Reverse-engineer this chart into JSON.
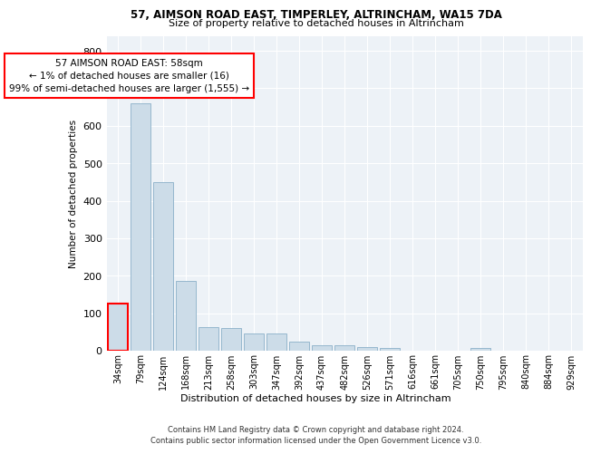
{
  "title1": "57, AIMSON ROAD EAST, TIMPERLEY, ALTRINCHAM, WA15 7DA",
  "title2": "Size of property relative to detached houses in Altrincham",
  "xlabel": "Distribution of detached houses by size in Altrincham",
  "ylabel": "Number of detached properties",
  "bar_color": "#ccdce8",
  "bar_edge_color": "#8ab0c8",
  "highlight_edge_color": "red",
  "annotation_line1": "57 AIMSON ROAD EAST: 58sqm",
  "annotation_line2": "← 1% of detached houses are smaller (16)",
  "annotation_line3": "99% of semi-detached houses are larger (1,555) →",
  "annotation_box_color": "white",
  "annotation_box_edge_color": "red",
  "footer_text": "Contains HM Land Registry data © Crown copyright and database right 2024.\nContains public sector information licensed under the Open Government Licence v3.0.",
  "categories": [
    "34sqm",
    "79sqm",
    "124sqm",
    "168sqm",
    "213sqm",
    "258sqm",
    "303sqm",
    "347sqm",
    "392sqm",
    "437sqm",
    "482sqm",
    "526sqm",
    "571sqm",
    "616sqm",
    "661sqm",
    "705sqm",
    "750sqm",
    "795sqm",
    "840sqm",
    "884sqm",
    "929sqm"
  ],
  "values": [
    125,
    660,
    450,
    185,
    62,
    60,
    47,
    47,
    25,
    14,
    15,
    10,
    8,
    0,
    0,
    0,
    8,
    0,
    0,
    0,
    0
  ],
  "ylim": [
    0,
    840
  ],
  "yticks": [
    0,
    100,
    200,
    300,
    400,
    500,
    600,
    700,
    800
  ],
  "background_color": "#edf2f7"
}
